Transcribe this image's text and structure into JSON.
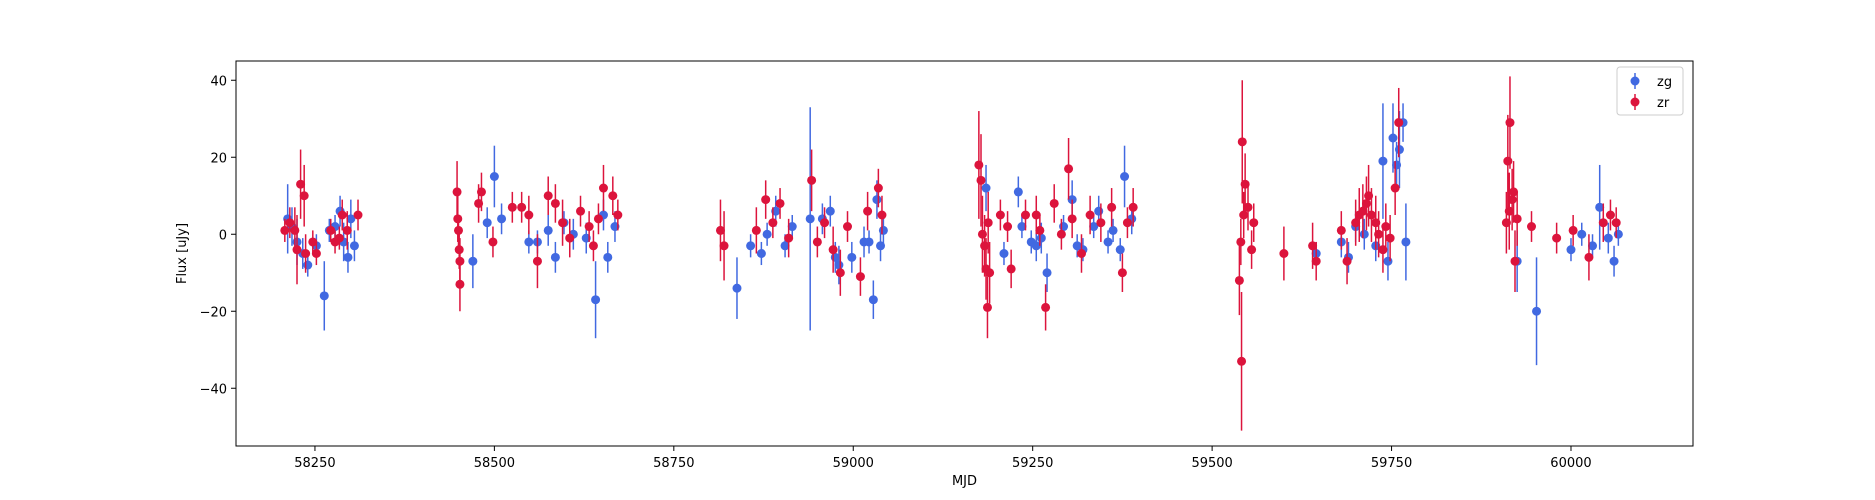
{
  "chart_data": {
    "type": "scatter",
    "xlabel": "MJD",
    "ylabel": "Flux [uJy]",
    "xlim": [
      58140,
      60170
    ],
    "ylim": [
      -55,
      45
    ],
    "x_ticks": [
      58250,
      58500,
      58750,
      59000,
      59250,
      59500,
      59750,
      60000
    ],
    "y_ticks": [
      -40,
      -20,
      0,
      20,
      40
    ],
    "grid": false,
    "legend_position": "top-right",
    "series": [
      {
        "name": "zg",
        "color": "#4169e1",
        "points": [
          {
            "x": 58212,
            "y": 4,
            "err": 9
          },
          {
            "x": 58218,
            "y": 2,
            "err": 5
          },
          {
            "x": 58225,
            "y": -2,
            "err": 6
          },
          {
            "x": 58233,
            "y": -5,
            "err": 4
          },
          {
            "x": 58240,
            "y": -8,
            "err": 3
          },
          {
            "x": 58252,
            "y": -3,
            "err": 3
          },
          {
            "x": 58263,
            "y": -16,
            "err": 9
          },
          {
            "x": 58270,
            "y": 1,
            "err": 3
          },
          {
            "x": 58278,
            "y": 2,
            "err": 3
          },
          {
            "x": 58285,
            "y": 6,
            "err": 4
          },
          {
            "x": 58290,
            "y": -2,
            "err": 5
          },
          {
            "x": 58296,
            "y": -6,
            "err": 4
          },
          {
            "x": 58300,
            "y": 4,
            "err": 5
          },
          {
            "x": 58305,
            "y": -3,
            "err": 4
          },
          {
            "x": 58470,
            "y": -7,
            "err": 7
          },
          {
            "x": 58490,
            "y": 3,
            "err": 4
          },
          {
            "x": 58500,
            "y": 15,
            "err": 8
          },
          {
            "x": 58510,
            "y": 4,
            "err": 4
          },
          {
            "x": 58548,
            "y": -2,
            "err": 3
          },
          {
            "x": 58560,
            "y": -2,
            "err": 3
          },
          {
            "x": 58575,
            "y": 1,
            "err": 4
          },
          {
            "x": 58585,
            "y": -6,
            "err": 4
          },
          {
            "x": 58597,
            "y": 3,
            "err": 3
          },
          {
            "x": 58610,
            "y": 0,
            "err": 4
          },
          {
            "x": 58628,
            "y": -1,
            "err": 4
          },
          {
            "x": 58641,
            "y": -17,
            "err": 10
          },
          {
            "x": 58652,
            "y": 5,
            "err": 4
          },
          {
            "x": 58658,
            "y": -6,
            "err": 4
          },
          {
            "x": 58668,
            "y": 2,
            "err": 4
          },
          {
            "x": 58838,
            "y": -14,
            "err": 8
          },
          {
            "x": 58857,
            "y": -3,
            "err": 3
          },
          {
            "x": 58872,
            "y": -5,
            "err": 3
          },
          {
            "x": 58880,
            "y": 0,
            "err": 3
          },
          {
            "x": 58892,
            "y": 6,
            "err": 4
          },
          {
            "x": 58905,
            "y": -3,
            "err": 3
          },
          {
            "x": 58915,
            "y": 2,
            "err": 3
          },
          {
            "x": 58940,
            "y": 4,
            "err": 29
          },
          {
            "x": 58957,
            "y": 4,
            "err": 4
          },
          {
            "x": 58968,
            "y": 6,
            "err": 4
          },
          {
            "x": 58975,
            "y": -6,
            "err": 4
          },
          {
            "x": 58980,
            "y": -8,
            "err": 5
          },
          {
            "x": 58998,
            "y": -6,
            "err": 4
          },
          {
            "x": 59015,
            "y": -2,
            "err": 4
          },
          {
            "x": 59022,
            "y": -2,
            "err": 3
          },
          {
            "x": 59028,
            "y": -17,
            "err": 5
          },
          {
            "x": 59033,
            "y": 9,
            "err": 5
          },
          {
            "x": 59038,
            "y": -3,
            "err": 4
          },
          {
            "x": 59042,
            "y": 1,
            "err": 4
          },
          {
            "x": 59185,
            "y": 12,
            "err": 6
          },
          {
            "x": 59210,
            "y": -5,
            "err": 3
          },
          {
            "x": 59230,
            "y": 11,
            "err": 4
          },
          {
            "x": 59235,
            "y": 2,
            "err": 3
          },
          {
            "x": 59248,
            "y": -2,
            "err": 3
          },
          {
            "x": 59255,
            "y": -3,
            "err": 4
          },
          {
            "x": 59262,
            "y": -1,
            "err": 4
          },
          {
            "x": 59270,
            "y": -10,
            "err": 5
          },
          {
            "x": 59293,
            "y": 2,
            "err": 3
          },
          {
            "x": 59305,
            "y": 9,
            "err": 5
          },
          {
            "x": 59312,
            "y": -3,
            "err": 3
          },
          {
            "x": 59320,
            "y": -4,
            "err": 3
          },
          {
            "x": 59335,
            "y": 2,
            "err": 3
          },
          {
            "x": 59342,
            "y": 6,
            "err": 4
          },
          {
            "x": 59355,
            "y": -2,
            "err": 3
          },
          {
            "x": 59362,
            "y": 1,
            "err": 3
          },
          {
            "x": 59372,
            "y": -4,
            "err": 3
          },
          {
            "x": 59378,
            "y": 15,
            "err": 8
          },
          {
            "x": 59388,
            "y": 4,
            "err": 4
          },
          {
            "x": 59645,
            "y": -5,
            "err": 3
          },
          {
            "x": 59680,
            "y": -2,
            "err": 4
          },
          {
            "x": 59690,
            "y": -6,
            "err": 4
          },
          {
            "x": 59700,
            "y": 2,
            "err": 4
          },
          {
            "x": 59712,
            "y": 0,
            "err": 4
          },
          {
            "x": 59728,
            "y": -3,
            "err": 4
          },
          {
            "x": 59738,
            "y": 19,
            "err": 15
          },
          {
            "x": 59745,
            "y": -7,
            "err": 5
          },
          {
            "x": 59752,
            "y": 25,
            "err": 9
          },
          {
            "x": 59757,
            "y": 18,
            "err": 6
          },
          {
            "x": 59761,
            "y": 22,
            "err": 10
          },
          {
            "x": 59766,
            "y": 29,
            "err": 5
          },
          {
            "x": 59770,
            "y": -2,
            "err": 10
          },
          {
            "x": 59925,
            "y": -7,
            "err": 8
          },
          {
            "x": 59952,
            "y": -20,
            "err": 14
          },
          {
            "x": 60000,
            "y": -4,
            "err": 3
          },
          {
            "x": 60015,
            "y": 0,
            "err": 3
          },
          {
            "x": 60030,
            "y": -3,
            "err": 3
          },
          {
            "x": 60040,
            "y": 7,
            "err": 11
          },
          {
            "x": 60052,
            "y": -1,
            "err": 4
          },
          {
            "x": 60060,
            "y": -7,
            "err": 4
          },
          {
            "x": 60066,
            "y": 0,
            "err": 3
          }
        ]
      },
      {
        "name": "zr",
        "color": "#dc143c",
        "points": [
          {
            "x": 58208,
            "y": 1,
            "err": 3
          },
          {
            "x": 58215,
            "y": 3,
            "err": 4
          },
          {
            "x": 58222,
            "y": 1,
            "err": 6
          },
          {
            "x": 58225,
            "y": -4,
            "err": 9
          },
          {
            "x": 58230,
            "y": 13,
            "err": 9
          },
          {
            "x": 58235,
            "y": 10,
            "err": 8
          },
          {
            "x": 58237,
            "y": -5,
            "err": 5
          },
          {
            "x": 58247,
            "y": -2,
            "err": 3
          },
          {
            "x": 58252,
            "y": -5,
            "err": 3
          },
          {
            "x": 58272,
            "y": 1,
            "err": 3
          },
          {
            "x": 58278,
            "y": -2,
            "err": 3
          },
          {
            "x": 58284,
            "y": -1,
            "err": 3
          },
          {
            "x": 58288,
            "y": 5,
            "err": 4
          },
          {
            "x": 58295,
            "y": 1,
            "err": 5
          },
          {
            "x": 58310,
            "y": 5,
            "err": 4
          },
          {
            "x": 58448,
            "y": 11,
            "err": 8
          },
          {
            "x": 58449,
            "y": 4,
            "err": 6
          },
          {
            "x": 58450,
            "y": 1,
            "err": 4
          },
          {
            "x": 58451,
            "y": -4,
            "err": 5
          },
          {
            "x": 58452,
            "y": -7,
            "err": 6
          },
          {
            "x": 58452,
            "y": -13,
            "err": 7
          },
          {
            "x": 58478,
            "y": 8,
            "err": 5
          },
          {
            "x": 58482,
            "y": 11,
            "err": 5
          },
          {
            "x": 58498,
            "y": -2,
            "err": 4
          },
          {
            "x": 58525,
            "y": 7,
            "err": 4
          },
          {
            "x": 58538,
            "y": 7,
            "err": 4
          },
          {
            "x": 58548,
            "y": 5,
            "err": 5
          },
          {
            "x": 58560,
            "y": -7,
            "err": 7
          },
          {
            "x": 58575,
            "y": 10,
            "err": 5
          },
          {
            "x": 58585,
            "y": 8,
            "err": 5
          },
          {
            "x": 58595,
            "y": 3,
            "err": 6
          },
          {
            "x": 58605,
            "y": -1,
            "err": 5
          },
          {
            "x": 58620,
            "y": 6,
            "err": 4
          },
          {
            "x": 58632,
            "y": 2,
            "err": 4
          },
          {
            "x": 58638,
            "y": -3,
            "err": 4
          },
          {
            "x": 58645,
            "y": 4,
            "err": 4
          },
          {
            "x": 58652,
            "y": 12,
            "err": 6
          },
          {
            "x": 58665,
            "y": 10,
            "err": 5
          },
          {
            "x": 58672,
            "y": 5,
            "err": 4
          },
          {
            "x": 58815,
            "y": 1,
            "err": 8
          },
          {
            "x": 58820,
            "y": -3,
            "err": 9
          },
          {
            "x": 58865,
            "y": 1,
            "err": 6
          },
          {
            "x": 58878,
            "y": 9,
            "err": 5
          },
          {
            "x": 58888,
            "y": 3,
            "err": 4
          },
          {
            "x": 58898,
            "y": 8,
            "err": 4
          },
          {
            "x": 58910,
            "y": -1,
            "err": 5
          },
          {
            "x": 58942,
            "y": 14,
            "err": 8
          },
          {
            "x": 58950,
            "y": -2,
            "err": 4
          },
          {
            "x": 58960,
            "y": 3,
            "err": 4
          },
          {
            "x": 58972,
            "y": -4,
            "err": 6
          },
          {
            "x": 58982,
            "y": -10,
            "err": 6
          },
          {
            "x": 58992,
            "y": 2,
            "err": 4
          },
          {
            "x": 59010,
            "y": -11,
            "err": 5
          },
          {
            "x": 59020,
            "y": 6,
            "err": 5
          },
          {
            "x": 59035,
            "y": 12,
            "err": 5
          },
          {
            "x": 59040,
            "y": 5,
            "err": 5
          },
          {
            "x": 59175,
            "y": 18,
            "err": 14
          },
          {
            "x": 59178,
            "y": 14,
            "err": 12
          },
          {
            "x": 59180,
            "y": 0,
            "err": 10
          },
          {
            "x": 59183,
            "y": -3,
            "err": 8
          },
          {
            "x": 59185,
            "y": -9,
            "err": 8
          },
          {
            "x": 59187,
            "y": -19,
            "err": 8
          },
          {
            "x": 59188,
            "y": 3,
            "err": 8
          },
          {
            "x": 59190,
            "y": -10,
            "err": 8
          },
          {
            "x": 59205,
            "y": 5,
            "err": 4
          },
          {
            "x": 59215,
            "y": 2,
            "err": 4
          },
          {
            "x": 59220,
            "y": -9,
            "err": 5
          },
          {
            "x": 59240,
            "y": 5,
            "err": 4
          },
          {
            "x": 59255,
            "y": 5,
            "err": 5
          },
          {
            "x": 59260,
            "y": 1,
            "err": 4
          },
          {
            "x": 59268,
            "y": -19,
            "err": 6
          },
          {
            "x": 59280,
            "y": 8,
            "err": 5
          },
          {
            "x": 59290,
            "y": 0,
            "err": 4
          },
          {
            "x": 59300,
            "y": 17,
            "err": 8
          },
          {
            "x": 59305,
            "y": 4,
            "err": 5
          },
          {
            "x": 59318,
            "y": -5,
            "err": 5
          },
          {
            "x": 59330,
            "y": 5,
            "err": 5
          },
          {
            "x": 59345,
            "y": 3,
            "err": 5
          },
          {
            "x": 59360,
            "y": 7,
            "err": 5
          },
          {
            "x": 59375,
            "y": -10,
            "err": 5
          },
          {
            "x": 59382,
            "y": 3,
            "err": 4
          },
          {
            "x": 59390,
            "y": 7,
            "err": 5
          },
          {
            "x": 59538,
            "y": -12,
            "err": 9
          },
          {
            "x": 59540,
            "y": -2,
            "err": 6
          },
          {
            "x": 59541,
            "y": -33,
            "err": 18
          },
          {
            "x": 59542,
            "y": 24,
            "err": 16
          },
          {
            "x": 59544,
            "y": 5,
            "err": 6
          },
          {
            "x": 59546,
            "y": 13,
            "err": 8
          },
          {
            "x": 59550,
            "y": 7,
            "err": 6
          },
          {
            "x": 59555,
            "y": -4,
            "err": 5
          },
          {
            "x": 59558,
            "y": 3,
            "err": 5
          },
          {
            "x": 59600,
            "y": -5,
            "err": 7
          },
          {
            "x": 59640,
            "y": -3,
            "err": 6
          },
          {
            "x": 59645,
            "y": -7,
            "err": 5
          },
          {
            "x": 59680,
            "y": 1,
            "err": 5
          },
          {
            "x": 59688,
            "y": -7,
            "err": 6
          },
          {
            "x": 59700,
            "y": 3,
            "err": 6
          },
          {
            "x": 59705,
            "y": 5,
            "err": 7
          },
          {
            "x": 59710,
            "y": 6,
            "err": 7
          },
          {
            "x": 59715,
            "y": 8,
            "err": 7
          },
          {
            "x": 59718,
            "y": 10,
            "err": 8
          },
          {
            "x": 59722,
            "y": 5,
            "err": 7
          },
          {
            "x": 59728,
            "y": 3,
            "err": 7
          },
          {
            "x": 59732,
            "y": 0,
            "err": 6
          },
          {
            "x": 59738,
            "y": -4,
            "err": 6
          },
          {
            "x": 59742,
            "y": 2,
            "err": 6
          },
          {
            "x": 59748,
            "y": -1,
            "err": 6
          },
          {
            "x": 59755,
            "y": 12,
            "err": 7
          },
          {
            "x": 59760,
            "y": 29,
            "err": 9
          },
          {
            "x": 59915,
            "y": 29,
            "err": 12
          },
          {
            "x": 59912,
            "y": 19,
            "err": 12
          },
          {
            "x": 59910,
            "y": 3,
            "err": 8
          },
          {
            "x": 59914,
            "y": 6,
            "err": 10
          },
          {
            "x": 59918,
            "y": 9,
            "err": 8
          },
          {
            "x": 59920,
            "y": 11,
            "err": 8
          },
          {
            "x": 59922,
            "y": -7,
            "err": 8
          },
          {
            "x": 59925,
            "y": 4,
            "err": 7
          },
          {
            "x": 59945,
            "y": 2,
            "err": 4
          },
          {
            "x": 59980,
            "y": -1,
            "err": 4
          },
          {
            "x": 60003,
            "y": 1,
            "err": 4
          },
          {
            "x": 60025,
            "y": -6,
            "err": 6
          },
          {
            "x": 60045,
            "y": 3,
            "err": 5
          },
          {
            "x": 60055,
            "y": 5,
            "err": 4
          },
          {
            "x": 60063,
            "y": 3,
            "err": 4
          }
        ]
      }
    ]
  }
}
